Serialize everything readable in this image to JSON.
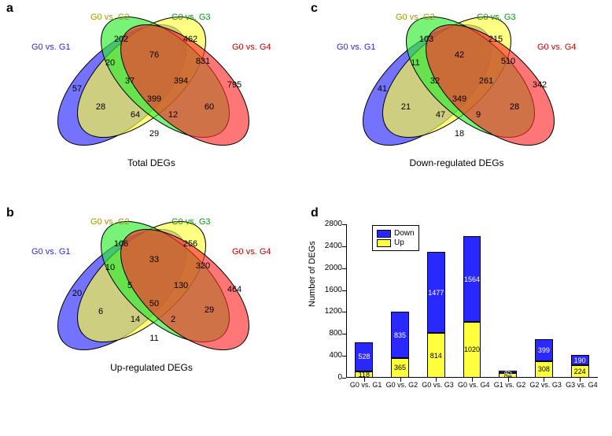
{
  "colors": {
    "blue": "#2828ff",
    "yellow": "#ffff3d",
    "green": "#2fec2f",
    "red": "#ff2d2d",
    "bg": "#ffffff"
  },
  "panel_a": {
    "letter": "a",
    "caption": "Total DEGs",
    "labels": {
      "L1": "G0 vs. G1",
      "L2": "G0 vs. G2",
      "L3": "G0 vs. G3",
      "L4": "G0 vs. G4"
    },
    "label_colors": {
      "L1": "#2828ff",
      "L2": "#9a9a00",
      "L3": "#0a9a0a",
      "L4": "#c20000"
    },
    "regions": {
      "only1": 57,
      "only2": 202,
      "only3": 462,
      "only4": 795,
      "r12": 20,
      "r23": 76,
      "r34": 831,
      "r13": 28,
      "r24": 60,
      "r14": 29,
      "r123": 37,
      "r234": 394,
      "r134": 64,
      "r124": 12,
      "r1234": 399
    }
  },
  "panel_b": {
    "letter": "b",
    "caption": "Up-regulated DEGs",
    "labels": {
      "L1": "G0 vs. G1",
      "L2": "G0 vs. G2",
      "L3": "G0 vs. G3",
      "L4": "G0 vs. G4"
    },
    "label_colors": {
      "L1": "#2828ff",
      "L2": "#9a9a00",
      "L3": "#0a9a0a",
      "L4": "#c20000"
    },
    "regions": {
      "only1": 20,
      "only2": 106,
      "only3": 256,
      "only4": 464,
      "r12": 10,
      "r23": 33,
      "r34": 320,
      "r13": 6,
      "r24": 29,
      "r14": 11,
      "r123": 5,
      "r234": 130,
      "r134": 14,
      "r124": 2,
      "r1234": 50
    }
  },
  "panel_c": {
    "letter": "c",
    "caption": "Down-regulated DEGs",
    "labels": {
      "L1": "G0 vs. G1",
      "L2": "G0 vs. G2",
      "L3": "G0 vs. G3",
      "L4": "G0 vs. G4"
    },
    "label_colors": {
      "L1": "#2828ff",
      "L2": "#9a9a00",
      "L3": "#0a9a0a",
      "L4": "#c20000"
    },
    "regions": {
      "only1": 41,
      "only2": 103,
      "only3": 215,
      "only4": 342,
      "r12": 11,
      "r23": 42,
      "r34": 510,
      "r13": 21,
      "r24": 28,
      "r14": 18,
      "r123": 32,
      "r234": 261,
      "r134": 47,
      "r124": 9,
      "r1234": 349
    }
  },
  "panel_d": {
    "letter": "d",
    "ylabel": "Number of DEGs",
    "ylim": [
      0,
      2800
    ],
    "ytick_step": 400,
    "legend": {
      "down": "Down",
      "up": "Up"
    },
    "series_colors": {
      "down": "#2828ff",
      "up": "#ffff3d"
    },
    "categories": [
      "G0 vs. G1",
      "G0 vs. G2",
      "G0 vs. G3",
      "G0 vs. G4",
      "G1 vs. G2",
      "G2 vs. G3",
      "G3 vs. G4"
    ],
    "down": [
      528,
      835,
      1477,
      1564,
      45,
      399,
      190
    ],
    "up": [
      118,
      365,
      814,
      1020,
      84,
      308,
      224
    ],
    "bar_width": 0.5
  }
}
